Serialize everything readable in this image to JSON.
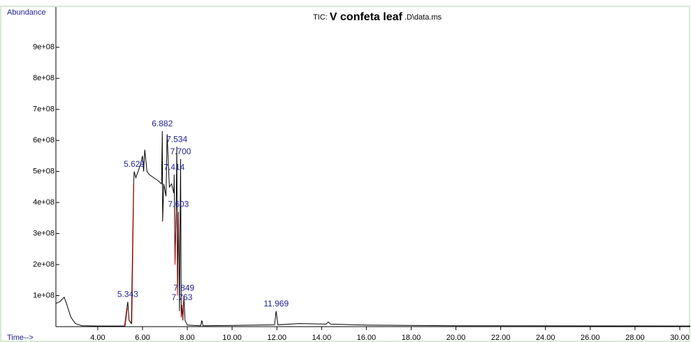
{
  "chart_data": {
    "type": "line",
    "title_prefix": "TIC:",
    "title": "V confeta leaf",
    "title_suffix": ".D\\data.ms",
    "ylabel": "Abundance",
    "xlabel": "Time-->",
    "xlim": [
      2.13,
      30.47
    ],
    "ylim": [
      0,
      1030000000.0
    ],
    "xticks": [
      {
        "value": 4,
        "label": "4.00"
      },
      {
        "value": 6,
        "label": "6.00"
      },
      {
        "value": 8,
        "label": "8.00"
      },
      {
        "value": 10,
        "label": "10.00"
      },
      {
        "value": 12,
        "label": "12.00"
      },
      {
        "value": 14,
        "label": "14.00"
      },
      {
        "value": 16,
        "label": "16.00"
      },
      {
        "value": 18,
        "label": "18.00"
      },
      {
        "value": 20,
        "label": "20.00"
      },
      {
        "value": 22,
        "label": "22.00"
      },
      {
        "value": 24,
        "label": "24.00"
      },
      {
        "value": 26,
        "label": "26.00"
      },
      {
        "value": 28,
        "label": "28.00"
      },
      {
        "value": 30,
        "label": "30.00"
      }
    ],
    "yticks": [
      {
        "value": 100000000,
        "label": "1e+08"
      },
      {
        "value": 200000000,
        "label": "2e+08"
      },
      {
        "value": 300000000,
        "label": "3e+08"
      },
      {
        "value": 400000000,
        "label": "4e+08"
      },
      {
        "value": 500000000,
        "label": "5e+08"
      },
      {
        "value": 600000000,
        "label": "6e+08"
      },
      {
        "value": 700000000,
        "label": "7e+08"
      },
      {
        "value": 800000000,
        "label": "8e+08"
      },
      {
        "value": 900000000,
        "label": "9e+08"
      }
    ],
    "series": [
      {
        "name": "TIC",
        "color": "#000000",
        "x": [
          2.13,
          2.3,
          2.5,
          2.6,
          2.8,
          3.0,
          3.3,
          4.0,
          5.2,
          5.3,
          5.343,
          5.4,
          5.5,
          5.6,
          5.629,
          5.7,
          5.8,
          5.9,
          6.0,
          6.05,
          6.1,
          6.2,
          6.3,
          6.5,
          6.7,
          6.85,
          6.882,
          6.9,
          6.95,
          7.05,
          7.1,
          7.2,
          7.3,
          7.4,
          7.414,
          7.45,
          7.5,
          7.534,
          7.56,
          7.603,
          7.65,
          7.7,
          7.73,
          7.763,
          7.8,
          7.849,
          7.9,
          8.0,
          8.6,
          8.65,
          8.7,
          10.0,
          11.9,
          11.969,
          12.05,
          13.0,
          14.2,
          14.3,
          14.4,
          16.0,
          20.0,
          30.47
        ],
        "values": [
          75000000.0,
          80000000.0,
          95000000.0,
          75000000.0,
          30000000.0,
          10000000.0,
          3000000.0,
          2000000.0,
          2000000.0,
          60000000.0,
          80000000.0,
          20000000.0,
          10000000.0,
          460000000.0,
          500000000.0,
          480000000.0,
          500000000.0,
          520000000.0,
          550000000.0,
          500000000.0,
          570000000.0,
          500000000.0,
          490000000.0,
          480000000.0,
          470000000.0,
          460000000.0,
          630000000.0,
          340000000.0,
          460000000.0,
          420000000.0,
          620000000.0,
          450000000.0,
          460000000.0,
          430000000.0,
          490000000.0,
          200000000.0,
          380000000.0,
          580000000.0,
          100000000.0,
          370000000.0,
          50000000.0,
          540000000.0,
          30000000.0,
          70000000.0,
          20000000.0,
          100000000.0,
          20000000.0,
          5000000.0,
          3000000.0,
          20000000.0,
          3000000.0,
          4000000.0,
          6000000.0,
          50000000.0,
          6000000.0,
          10000000.0,
          8000000.0,
          15000000.0,
          8000000.0,
          5000000.0,
          3000000.0,
          2000000.0
        ]
      },
      {
        "name": "Integration",
        "color": "#cc0000",
        "x": [
          5.22,
          5.32,
          5.32,
          5.52,
          5.61,
          5.61,
          6.86,
          6.9,
          6.9,
          7.45,
          7.5,
          7.5,
          7.56,
          7.6,
          7.6,
          7.73,
          7.76,
          7.76,
          7.8,
          7.85
        ],
        "values": [
          2000000.0,
          60000000.0,
          null,
          10000000.0,
          460000000.0,
          null,
          340000000.0,
          340000000.0,
          null,
          200000000.0,
          380000000.0,
          null,
          100000000.0,
          360000000.0,
          null,
          30000000.0,
          70000000.0,
          null,
          20000000.0,
          100000000.0
        ]
      }
    ],
    "peaks": {
      "x": [
        5.343,
        5.629,
        6.882,
        7.534,
        7.7,
        7.414,
        7.603,
        7.849,
        7.763,
        11.969
      ],
      "x_labels": [
        "5.343",
        "5.629",
        "6.882",
        "7.534",
        "7.700",
        "7.414",
        "7.603",
        "7.849",
        "7.763",
        "11.969"
      ],
      "values": [
        80000000.0,
        500000000.0,
        630000000.0,
        580000000.0,
        540000000.0,
        490000000.0,
        370000000.0,
        100000000.0,
        70000000.0,
        50000000.0
      ]
    }
  }
}
